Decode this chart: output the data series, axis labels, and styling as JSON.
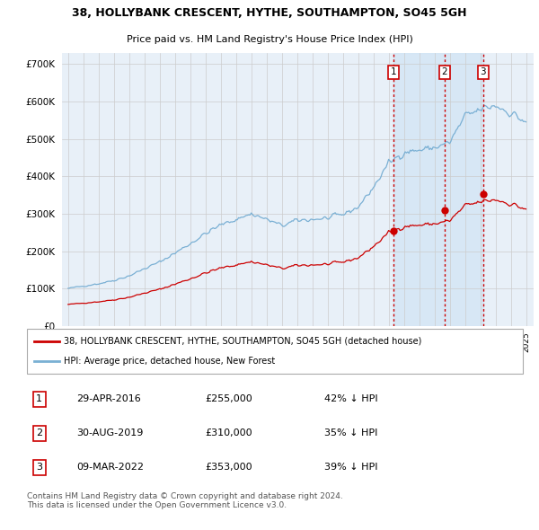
{
  "title": "38, HOLLYBANK CRESCENT, HYTHE, SOUTHAMPTON, SO45 5GH",
  "subtitle": "Price paid vs. HM Land Registry's House Price Index (HPI)",
  "ylim": [
    0,
    730000
  ],
  "yticks": [
    0,
    100000,
    200000,
    300000,
    400000,
    500000,
    600000,
    700000
  ],
  "ytick_labels": [
    "£0",
    "£100K",
    "£200K",
    "£300K",
    "£400K",
    "£500K",
    "£600K",
    "£700K"
  ],
  "sale_dates": [
    2016.33,
    2019.67,
    2022.19
  ],
  "sale_prices": [
    255000,
    310000,
    353000
  ],
  "sale_labels": [
    "1",
    "2",
    "3"
  ],
  "sale_info": [
    [
      "1",
      "29-APR-2016",
      "£255,000",
      "42% ↓ HPI"
    ],
    [
      "2",
      "30-AUG-2019",
      "£310,000",
      "35% ↓ HPI"
    ],
    [
      "3",
      "09-MAR-2022",
      "£353,000",
      "39% ↓ HPI"
    ]
  ],
  "legend_labels": [
    "38, HOLLYBANK CRESCENT, HYTHE, SOUTHAMPTON, SO45 5GH (detached house)",
    "HPI: Average price, detached house, New Forest"
  ],
  "sale_line_color": "#cc0000",
  "hpi_line_color": "#7ab0d4",
  "sale_marker_color": "#cc0000",
  "vline_color": "#cc0000",
  "grid_color": "#cccccc",
  "background_color": "#ffffff",
  "plot_bg_color": "#e8f0f8",
  "shade_color": "#d0e4f5",
  "footer_text": "Contains HM Land Registry data © Crown copyright and database right 2024.\nThis data is licensed under the Open Government Licence v3.0."
}
